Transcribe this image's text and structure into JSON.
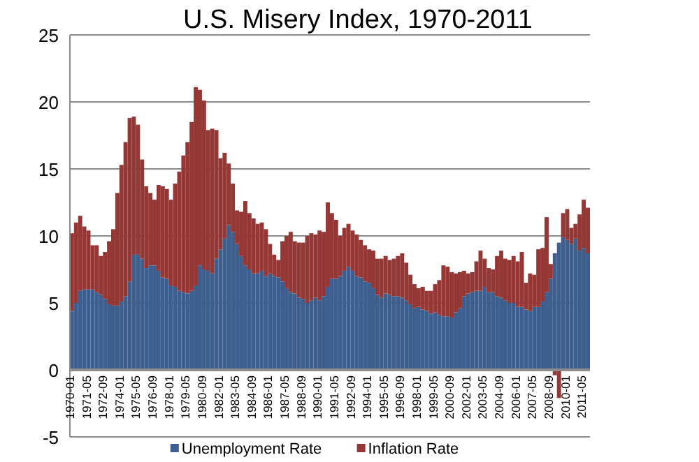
{
  "chart_data": {
    "type": "bar",
    "title": "U.S. Misery Index, 1970-2011",
    "stacked": true,
    "x": [
      "1970-03",
      "1970-07",
      "1970-11",
      "1971-03",
      "1971-07",
      "1971-11",
      "1972-03",
      "1972-07",
      "1972-11",
      "1973-03",
      "1973-07",
      "1973-11",
      "1974-03",
      "1974-07",
      "1974-11",
      "1975-03",
      "1975-07",
      "1975-11",
      "1976-03",
      "1976-07",
      "1976-11",
      "1977-03",
      "1977-07",
      "1977-11",
      "1978-03",
      "1978-07",
      "1978-11",
      "1979-03",
      "1979-07",
      "1979-11",
      "1980-03",
      "1980-07",
      "1980-11",
      "1981-03",
      "1981-07",
      "1981-11",
      "1982-03",
      "1982-07",
      "1982-11",
      "1983-03",
      "1983-07",
      "1983-11",
      "1984-03",
      "1984-07",
      "1984-11",
      "1985-03",
      "1985-07",
      "1985-11",
      "1986-03",
      "1986-07",
      "1986-11",
      "1987-03",
      "1987-07",
      "1987-11",
      "1988-03",
      "1988-07",
      "1988-11",
      "1989-03",
      "1989-07",
      "1989-11",
      "1990-03",
      "1990-07",
      "1990-11",
      "1991-03",
      "1991-07",
      "1991-11",
      "1992-03",
      "1992-07",
      "1992-11",
      "1993-03",
      "1993-07",
      "1993-11",
      "1994-03",
      "1994-07",
      "1994-11",
      "1995-03",
      "1995-07",
      "1995-11",
      "1996-03",
      "1996-07",
      "1996-11",
      "1997-03",
      "1997-07",
      "1997-11",
      "1998-03",
      "1998-07",
      "1998-11",
      "1999-03",
      "1999-07",
      "1999-11",
      "2000-03",
      "2000-07",
      "2000-11",
      "2001-03",
      "2001-07",
      "2001-11",
      "2002-03",
      "2002-07",
      "2002-11",
      "2003-03",
      "2003-07",
      "2003-11",
      "2004-03",
      "2004-07",
      "2004-11",
      "2005-03",
      "2005-07",
      "2005-11",
      "2006-03",
      "2006-07",
      "2006-11",
      "2007-03",
      "2007-07",
      "2007-11",
      "2008-03",
      "2008-07",
      "2008-11",
      "2009-03",
      "2009-07",
      "2009-11",
      "2010-03",
      "2010-07",
      "2010-11",
      "2011-03",
      "2011-07",
      "2011-11"
    ],
    "series": [
      {
        "name": "Unemployment Rate",
        "color": "#3d5f8f",
        "values": [
          4.4,
          5.0,
          5.9,
          6.0,
          6.0,
          6.0,
          5.8,
          5.6,
          5.3,
          4.9,
          4.8,
          4.8,
          5.1,
          5.5,
          6.6,
          8.6,
          8.6,
          8.3,
          7.6,
          7.8,
          7.8,
          7.4,
          6.9,
          6.8,
          6.3,
          6.2,
          5.9,
          5.8,
          5.7,
          5.9,
          6.3,
          7.8,
          7.5,
          7.4,
          7.2,
          8.3,
          9.0,
          9.8,
          10.8,
          10.3,
          9.4,
          8.5,
          7.8,
          7.5,
          7.2,
          7.2,
          7.4,
          7.0,
          7.2,
          7.0,
          6.9,
          6.6,
          6.1,
          5.8,
          5.7,
          5.4,
          5.3,
          5.0,
          5.2,
          5.4,
          5.2,
          5.5,
          6.2,
          6.8,
          6.8,
          7.0,
          7.4,
          7.7,
          7.4,
          7.0,
          6.9,
          6.6,
          6.5,
          6.1,
          5.6,
          5.4,
          5.7,
          5.6,
          5.5,
          5.5,
          5.4,
          5.2,
          4.9,
          4.6,
          4.7,
          4.5,
          4.4,
          4.2,
          4.3,
          4.1,
          4.0,
          4.0,
          3.9,
          4.3,
          4.6,
          5.5,
          5.7,
          5.8,
          5.9,
          5.9,
          6.2,
          5.8,
          5.8,
          5.5,
          5.4,
          5.2,
          5.0,
          5.0,
          4.7,
          4.7,
          4.5,
          4.4,
          4.7,
          4.7,
          5.1,
          5.8,
          6.8,
          8.7,
          9.5,
          9.9,
          9.7,
          9.4,
          9.8,
          8.9,
          9.1,
          8.7
        ]
      },
      {
        "name": "Inflation Rate",
        "color": "#953735",
        "values": [
          5.8,
          6.0,
          5.6,
          4.7,
          4.4,
          3.3,
          3.5,
          2.9,
          3.5,
          4.7,
          5.7,
          8.4,
          10.2,
          11.5,
          12.2,
          10.3,
          9.7,
          7.4,
          6.1,
          5.4,
          4.9,
          6.4,
          6.8,
          6.7,
          6.4,
          7.7,
          8.9,
          10.2,
          11.3,
          12.6,
          14.8,
          13.1,
          12.6,
          10.5,
          10.8,
          9.6,
          6.8,
          6.4,
          4.6,
          3.6,
          2.5,
          3.3,
          4.8,
          4.2,
          4.1,
          3.7,
          3.6,
          3.5,
          2.2,
          1.6,
          1.3,
          3.0,
          3.9,
          4.5,
          3.9,
          4.1,
          4.2,
          5.0,
          5.0,
          4.7,
          5.2,
          4.8,
          6.3,
          4.9,
          4.4,
          3.0,
          3.2,
          3.2,
          3.0,
          3.1,
          2.8,
          2.7,
          2.5,
          2.8,
          2.7,
          2.9,
          2.8,
          2.6,
          2.8,
          3.0,
          3.3,
          2.8,
          2.2,
          1.8,
          1.4,
          1.7,
          1.5,
          1.7,
          2.1,
          2.6,
          3.8,
          3.7,
          3.4,
          2.9,
          2.7,
          1.9,
          1.5,
          1.5,
          2.2,
          3.0,
          2.1,
          1.8,
          1.7,
          3.0,
          3.5,
          3.1,
          3.2,
          3.5,
          3.4,
          4.1,
          2.0,
          2.8,
          2.4,
          4.3,
          4.0,
          5.6,
          1.1,
          -0.4,
          -2.1,
          1.8,
          2.3,
          1.2,
          1.1,
          2.7,
          3.6,
          3.4
        ]
      }
    ],
    "xlim": [
      "1970-01",
      "2012-01"
    ],
    "xticks": [
      "1970-01",
      "1971-05",
      "1972-09",
      "1974-01",
      "1975-05",
      "1976-09",
      "1978-01",
      "1979-05",
      "1980-09",
      "1982-01",
      "1983-05",
      "1984-09",
      "1986-01",
      "1987-05",
      "1988-09",
      "1990-01",
      "1991-05",
      "1992-09",
      "1994-01",
      "1995-05",
      "1996-09",
      "1998-01",
      "1999-05",
      "2000-09",
      "2002-01",
      "2003-05",
      "2004-09",
      "2006-01",
      "2007-05",
      "2008-09",
      "2010-01",
      "2011-05"
    ],
    "ylim": [
      -5,
      25
    ],
    "yticks": [
      -5,
      0,
      5,
      10,
      15,
      20,
      25
    ],
    "grid": "y",
    "legend": "bottom"
  }
}
